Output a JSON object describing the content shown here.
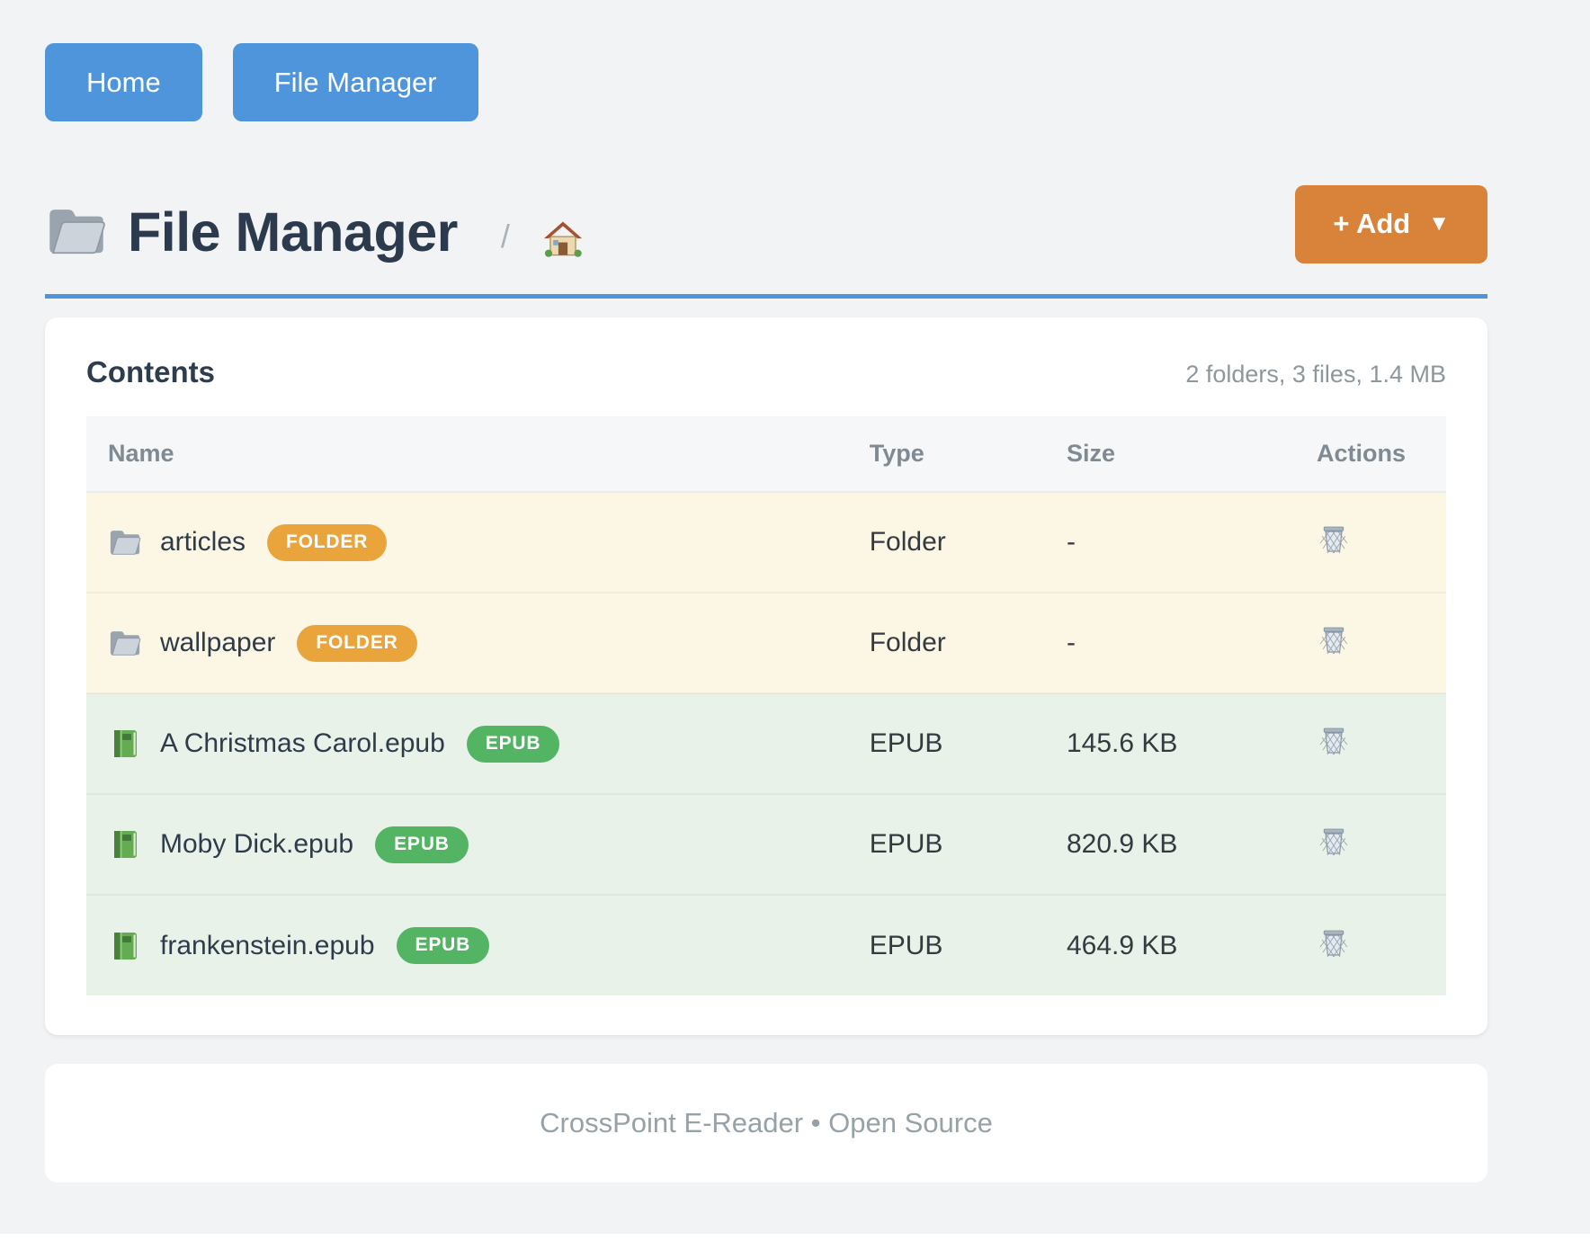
{
  "nav": {
    "home_label": "Home",
    "file_manager_label": "File Manager"
  },
  "header": {
    "title": "File Manager",
    "breadcrumb_separator": "/",
    "add_label": "+ Add",
    "add_caret": "▼"
  },
  "contents": {
    "heading": "Contents",
    "summary": "2 folders, 3 files, 1.4 MB",
    "table": {
      "columns": [
        "Name",
        "Type",
        "Size",
        "Actions"
      ],
      "rows": [
        {
          "name": "articles",
          "icon": "folder-icon",
          "badge": "FOLDER",
          "kind": "folder",
          "type": "Folder",
          "size": "-"
        },
        {
          "name": "wallpaper",
          "icon": "folder-icon",
          "badge": "FOLDER",
          "kind": "folder",
          "type": "Folder",
          "size": "-"
        },
        {
          "name": "A Christmas Carol.epub",
          "icon": "book-icon",
          "badge": "EPUB",
          "kind": "epub",
          "type": "EPUB",
          "size": "145.6 KB"
        },
        {
          "name": "Moby Dick.epub",
          "icon": "book-icon",
          "badge": "EPUB",
          "kind": "epub",
          "type": "EPUB",
          "size": "820.9 KB"
        },
        {
          "name": "frankenstein.epub",
          "icon": "book-icon",
          "badge": "EPUB",
          "kind": "epub",
          "type": "EPUB",
          "size": "464.9 KB"
        }
      ],
      "action_icon": "trash-icon"
    }
  },
  "footer": {
    "text": "CrossPoint E-Reader • Open Source"
  },
  "colors": {
    "primary_blue": "#4e95db",
    "accent_orange": "#d9833a",
    "badge_orange": "#e9a43c",
    "badge_green": "#53b463",
    "folder_row_bg": "#fcf6e5",
    "epub_row_bg": "#e9f2e9",
    "heading_dark": "#2d3c4e"
  }
}
